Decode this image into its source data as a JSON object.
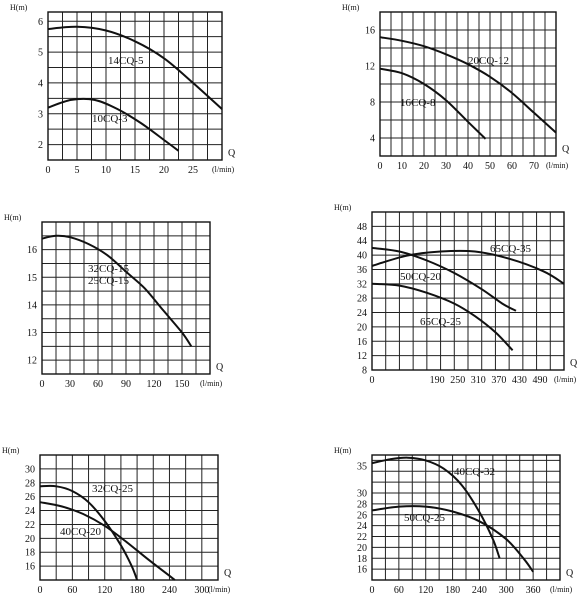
{
  "chart_data": [
    {
      "type": "line",
      "ylabel": "H(m)",
      "xlabel_q": "Q",
      "xlabel_unit": "(l/min)",
      "xlim": [
        0,
        30
      ],
      "ylim": [
        1.5,
        6.3
      ],
      "x_grid_step": 2.5,
      "y_grid_step": 0.5,
      "xticks": [
        0,
        5,
        10,
        15,
        20,
        25
      ],
      "yticks": [
        2,
        3,
        4,
        5,
        6
      ],
      "series": [
        {
          "name": "14CQ-5",
          "x": [
            0,
            5,
            10,
            15,
            20,
            25,
            30
          ],
          "y": [
            5.75,
            5.82,
            5.7,
            5.35,
            4.8,
            4.0,
            3.15
          ]
        },
        {
          "name": "10CQ-3",
          "x": [
            0,
            4,
            8,
            12,
            16,
            20,
            22.5
          ],
          "y": [
            3.2,
            3.45,
            3.45,
            3.15,
            2.7,
            2.15,
            1.8
          ]
        }
      ]
    },
    {
      "type": "line",
      "ylabel": "H(m)",
      "xlabel_q": "Q",
      "xlabel_unit": "(l/min)",
      "xlim": [
        0,
        80
      ],
      "ylim": [
        2,
        18
      ],
      "x_grid_step": 5,
      "y_grid_step": 2,
      "xticks": [
        0,
        10,
        20,
        30,
        40,
        50,
        60,
        70
      ],
      "yticks": [
        4,
        8,
        12,
        16
      ],
      "series": [
        {
          "name": "20CQ-12",
          "x": [
            0,
            10,
            20,
            30,
            40,
            50,
            60,
            70,
            80
          ],
          "y": [
            15.2,
            14.8,
            14.2,
            13.3,
            12.2,
            10.8,
            9.0,
            6.8,
            4.6
          ]
        },
        {
          "name": "16CQ-8",
          "x": [
            0,
            10,
            20,
            30,
            40,
            48
          ],
          "y": [
            11.7,
            11.2,
            10.0,
            8.2,
            5.8,
            3.9
          ]
        }
      ]
    },
    {
      "type": "line",
      "ylabel": "H(m)",
      "xlabel_q": "Q",
      "xlabel_unit": "(l/min)",
      "xlim": [
        0,
        180
      ],
      "ylim": [
        11.5,
        17.0
      ],
      "x_grid_step": 15,
      "y_grid_step": 0.5,
      "xticks": [
        0,
        30,
        60,
        90,
        120,
        150
      ],
      "yticks": [
        12,
        13,
        14,
        15,
        16
      ],
      "series": [
        {
          "name": "32CQ-15",
          "x": [
            0,
            15,
            30,
            50,
            70,
            90,
            110,
            130,
            150,
            160
          ],
          "y": [
            16.4,
            16.5,
            16.45,
            16.2,
            15.8,
            15.2,
            14.6,
            13.8,
            13.0,
            12.5
          ]
        }
      ],
      "annotations": [
        "32CQ-15",
        "25CQ-15"
      ]
    },
    {
      "type": "line",
      "ylabel": "H(m)",
      "xlabel_q": "Q",
      "xlabel_unit": "(l/min)",
      "xlim": [
        0,
        560
      ],
      "ylim": [
        8,
        52
      ],
      "x_grid_step": 40,
      "y_grid_step": 4,
      "xticks": [
        0,
        190,
        250,
        310,
        370,
        430,
        490
      ],
      "yticks": [
        8,
        12,
        16,
        20,
        24,
        28,
        32,
        36,
        40,
        44,
        48
      ],
      "series": [
        {
          "name": "65CQ-35",
          "x": [
            0,
            100,
            200,
            300,
            400,
            500,
            560
          ],
          "y": [
            37.0,
            39.8,
            41.0,
            41.0,
            39.0,
            35.5,
            32.0
          ]
        },
        {
          "name": "50CQ-20",
          "x": [
            0,
            80,
            160,
            240,
            320,
            380,
            420
          ],
          "y": [
            42.0,
            41.0,
            38.5,
            35.0,
            30.5,
            26.5,
            24.5
          ]
        },
        {
          "name": "65CQ-25",
          "x": [
            0,
            80,
            160,
            240,
            300,
            360,
            410
          ],
          "y": [
            32.0,
            31.5,
            29.5,
            26.5,
            23.0,
            18.5,
            13.5
          ]
        }
      ]
    },
    {
      "type": "line",
      "ylabel": "H(m)",
      "xlabel_q": "Q",
      "xlabel_unit": "(l/min)",
      "xlim": [
        0,
        330
      ],
      "ylim": [
        14,
        32
      ],
      "x_grid_step": 30,
      "y_grid_step": 2,
      "xticks": [
        0,
        60,
        120,
        180,
        240,
        300
      ],
      "yticks": [
        16,
        18,
        20,
        22,
        24,
        26,
        28,
        30
      ],
      "series": [
        {
          "name": "32CQ-25",
          "x": [
            0,
            30,
            60,
            90,
            120,
            150,
            170,
            180
          ],
          "y": [
            27.5,
            27.5,
            26.8,
            25.2,
            22.5,
            19.0,
            16.0,
            14.0
          ]
        },
        {
          "name": "40CQ-20",
          "x": [
            0,
            40,
            80,
            120,
            160,
            200,
            240,
            250
          ],
          "y": [
            25.2,
            24.6,
            23.5,
            21.8,
            19.5,
            17.0,
            14.6,
            14.0
          ]
        }
      ]
    },
    {
      "type": "line",
      "ylabel": "H(m)",
      "xlabel_q": "Q",
      "xlabel_unit": "(l/min)",
      "xlim": [
        0,
        420
      ],
      "ylim": [
        14,
        37
      ],
      "x_grid_step": 30,
      "y_grid_step": 2,
      "xticks": [
        0,
        60,
        120,
        180,
        240,
        300,
        360
      ],
      "yticks": [
        16,
        18,
        20,
        22,
        24,
        26,
        28,
        30,
        35
      ],
      "series": [
        {
          "name": "40CQ-32",
          "x": [
            0,
            40,
            80,
            120,
            160,
            200,
            240,
            270,
            285
          ],
          "y": [
            35.5,
            36.2,
            36.5,
            36.0,
            34.5,
            31.5,
            26.5,
            21.5,
            18.0
          ]
        },
        {
          "name": "50CQ-25",
          "x": [
            0,
            60,
            120,
            180,
            240,
            300,
            340,
            360
          ],
          "y": [
            26.8,
            27.5,
            27.5,
            26.6,
            24.8,
            21.5,
            17.8,
            15.5
          ]
        }
      ]
    }
  ]
}
